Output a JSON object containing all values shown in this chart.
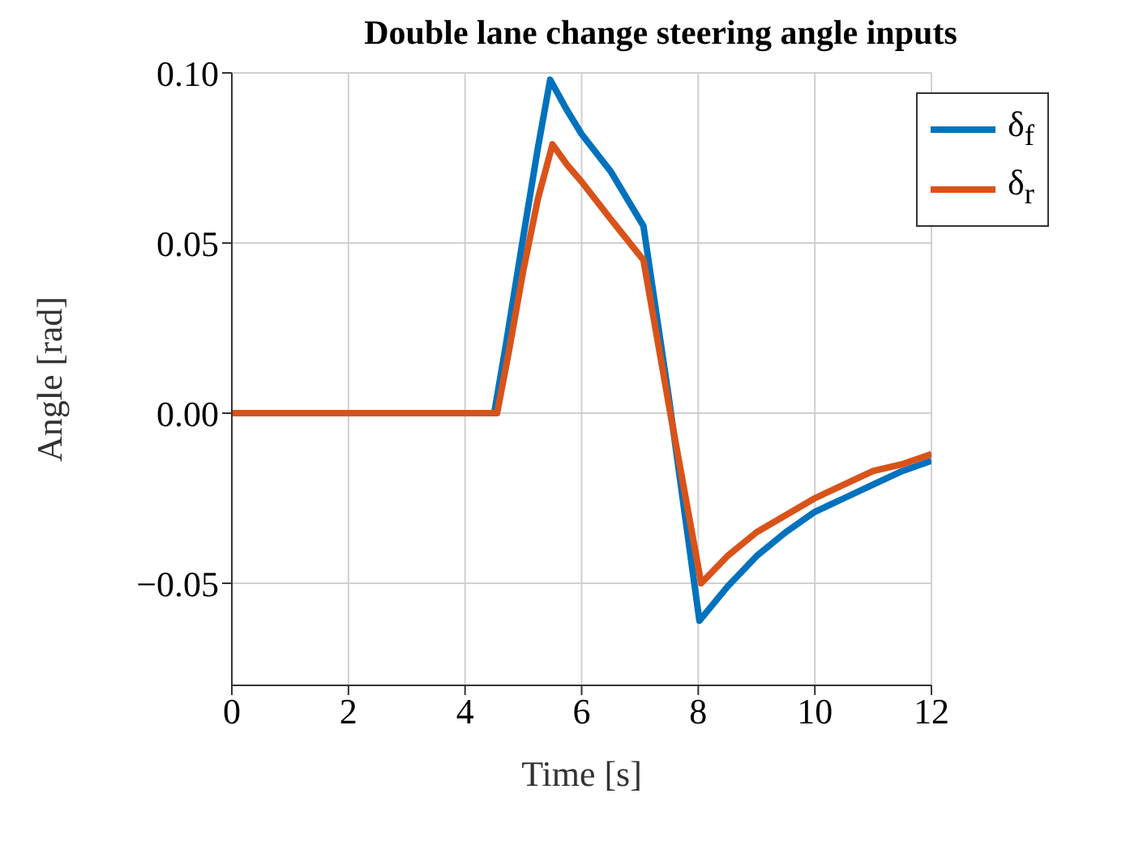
{
  "chart_data": {
    "type": "line",
    "title": "Double lane change steering angle inputs",
    "xlabel": "Time [s]",
    "ylabel": "Angle [rad]",
    "xlim": [
      0,
      12
    ],
    "xticks": [
      0,
      2,
      4,
      6,
      8,
      10,
      12
    ],
    "ylim": [
      -0.08,
      0.1
    ],
    "yticks": [
      {
        "value": -0.05,
        "label": "−0.05"
      },
      {
        "value": 0,
        "label": "0.00"
      },
      {
        "value": 0.05,
        "label": "0.05"
      },
      {
        "value": 0.1,
        "label": "0.10"
      }
    ],
    "grid": true,
    "legend": "top right",
    "marker": "none",
    "line_style": "solid",
    "series": [
      {
        "name": "δ$_{f}$",
        "color": "#0072bd",
        "x": [
          0,
          4.5,
          4.7,
          5,
          5.25,
          5.46,
          5.75,
          6,
          6.5,
          7.06,
          7.5,
          8.02,
          8.5,
          9,
          9.5,
          10,
          10.5,
          11,
          11.5,
          12
        ],
        "values": [
          0,
          0,
          0.02,
          0.052,
          0.078,
          0.098,
          0.089,
          0.082,
          0.071,
          0.055,
          0.004,
          -0.061,
          -0.051,
          -0.042,
          -0.035,
          -0.029,
          -0.025,
          -0.021,
          -0.017,
          -0.014
        ]
      },
      {
        "name": "δ$_{r}$",
        "color": "#d95319",
        "x": [
          0,
          4.55,
          4.75,
          5,
          5.25,
          5.5,
          5.75,
          6,
          6.5,
          7.06,
          7.5,
          8.05,
          8.5,
          9,
          9.5,
          10,
          10.5,
          11,
          11.5,
          12
        ],
        "values": [
          0,
          0,
          0.018,
          0.042,
          0.063,
          0.079,
          0.073,
          0.068,
          0.057,
          0.045,
          0.002,
          -0.05,
          -0.042,
          -0.035,
          -0.03,
          -0.025,
          -0.021,
          -0.017,
          -0.015,
          -0.012
        ]
      }
    ]
  }
}
